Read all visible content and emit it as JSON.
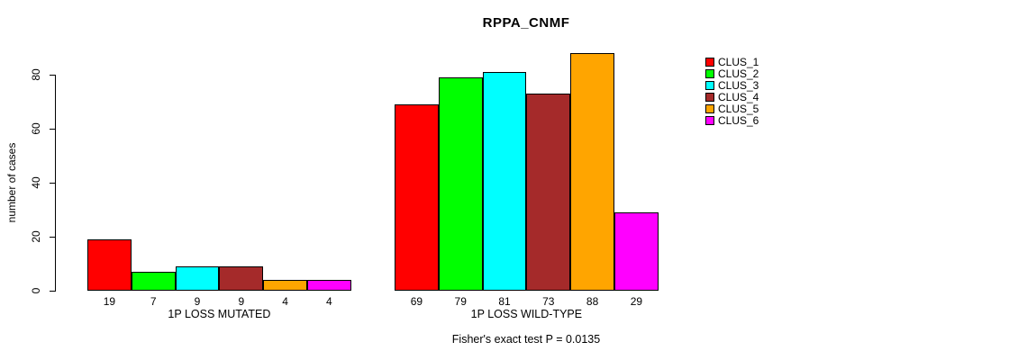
{
  "chart_data": {
    "type": "bar",
    "title": "RPPA_CNMF",
    "ylabel": "number of cases",
    "ylim": [
      0,
      88
    ],
    "yticks": [
      0,
      20,
      40,
      60,
      80
    ],
    "categories": [
      "1P LOSS MUTATED",
      "1P LOSS WILD-TYPE"
    ],
    "series": [
      {
        "name": "CLUS_1",
        "color": "#FF0000",
        "values": [
          19,
          69
        ]
      },
      {
        "name": "CLUS_2",
        "color": "#00FF00",
        "values": [
          7,
          79
        ]
      },
      {
        "name": "CLUS_3",
        "color": "#00FFFF",
        "values": [
          9,
          81
        ]
      },
      {
        "name": "CLUS_4",
        "color": "#A52A2A",
        "values": [
          9,
          73
        ]
      },
      {
        "name": "CLUS_5",
        "color": "#FFA500",
        "values": [
          4,
          88
        ]
      },
      {
        "name": "CLUS_6",
        "color": "#FF00FF",
        "values": [
          4,
          29
        ]
      }
    ],
    "bar_value_labels": true,
    "legend_position": "right",
    "grid": false,
    "background_color": "#FFFFFF",
    "bar_border_color": "#000000",
    "annotation": "Fisher's exact test P = 0.0135"
  }
}
